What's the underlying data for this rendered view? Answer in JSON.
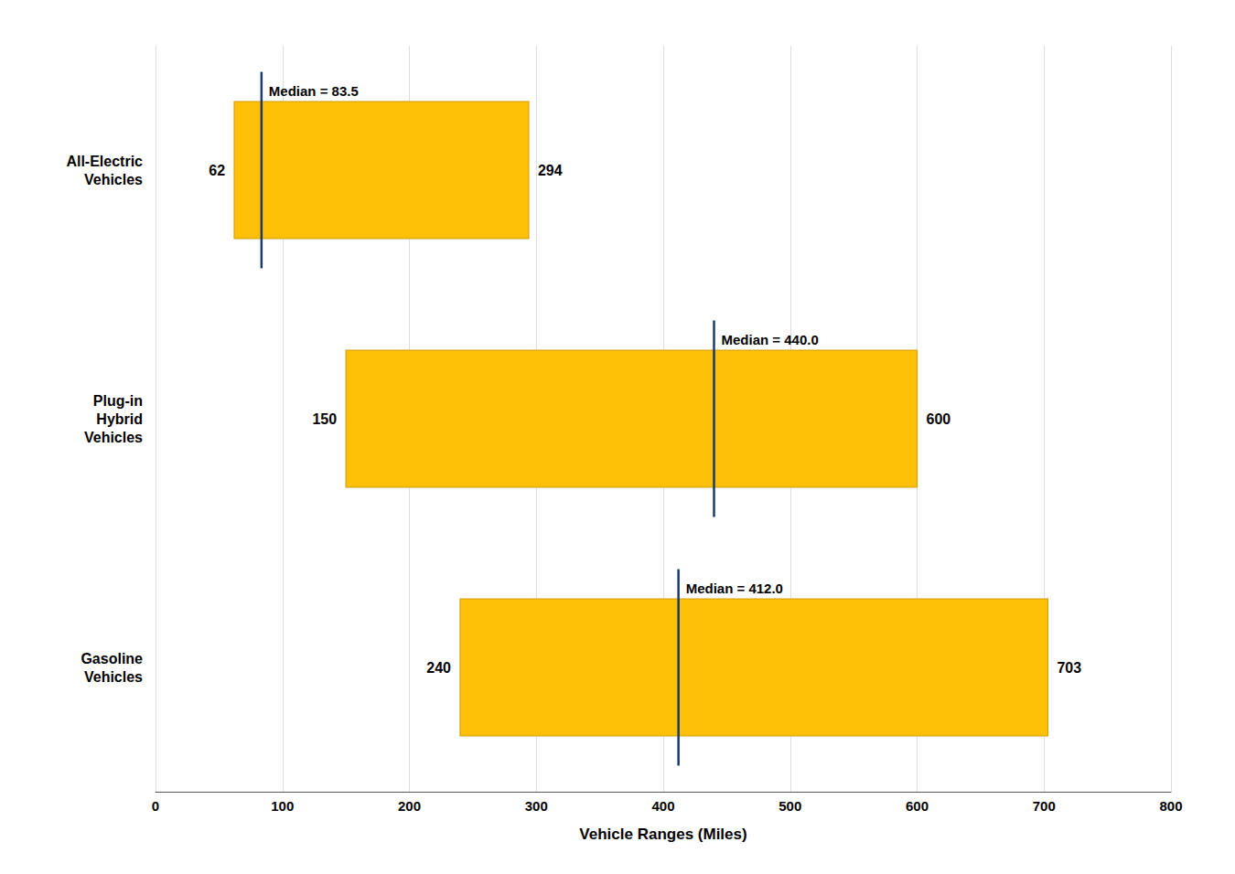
{
  "chart_data": {
    "type": "bar",
    "orientation": "horizontal",
    "categories": [
      "All-Electric\nVehicles",
      "Plug-in\nHybrid\nVehicles",
      "Gasoline\nVehicles"
    ],
    "series": [
      {
        "type": "range",
        "low": [
          62,
          150,
          240
        ],
        "high": [
          294,
          600,
          703
        ],
        "color": "#FFC107"
      },
      {
        "type": "median",
        "values": [
          83.5,
          440.0,
          412.0
        ],
        "value_labels": [
          "Median = 83.5",
          "Median = 440.0",
          "Median = 412.0"
        ],
        "color": "#1a3a6e"
      }
    ],
    "xlabel": "Vehicle Ranges (Miles)",
    "xlim": [
      0,
      800
    ],
    "xticks": [
      0,
      100,
      200,
      300,
      400,
      500,
      600,
      700,
      800
    ],
    "grid": true,
    "data_labels": true
  }
}
